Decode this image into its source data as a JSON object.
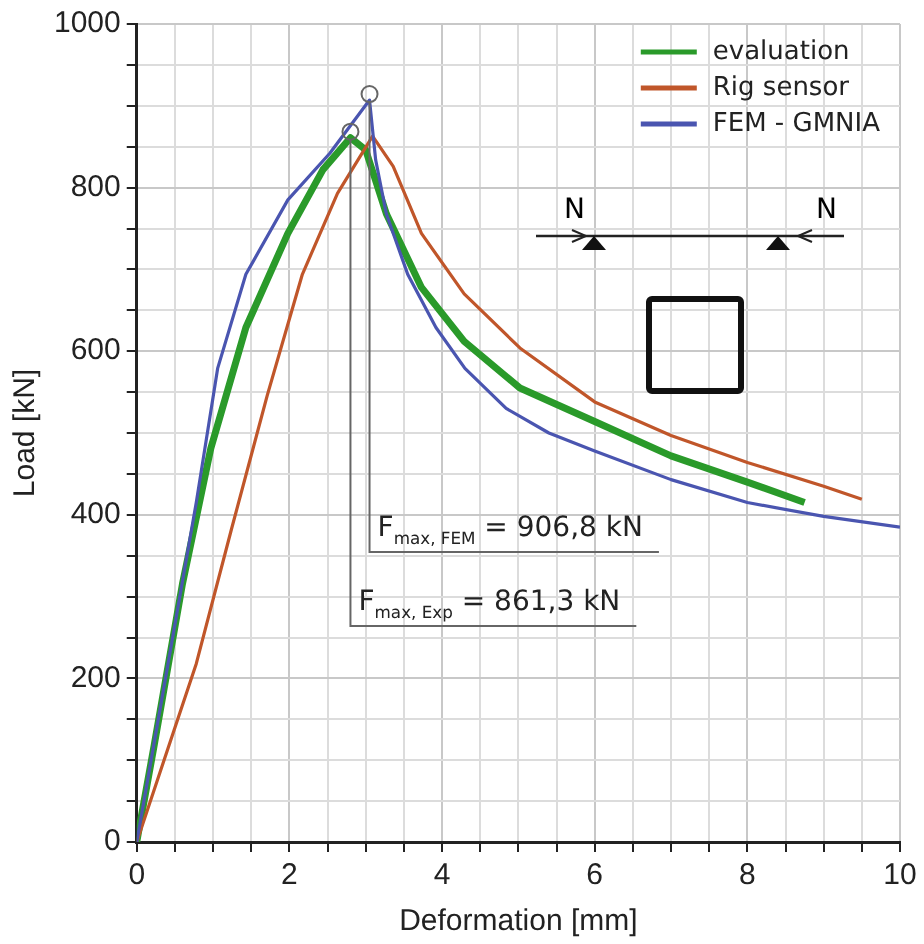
{
  "chart_data": {
    "type": "line",
    "xlabel": "Deformation [mm]",
    "ylabel": "Load [kN]",
    "series": [
      {
        "name": "evaluation",
        "color": "#2a9a2a",
        "x": [
          0,
          0.23,
          0.6,
          0.97,
          1.43,
          1.98,
          2.44,
          2.8,
          3.0,
          3.27,
          3.73,
          4.29,
          5.02,
          6,
          7,
          8,
          8.75
        ],
        "values": [
          0,
          119,
          316,
          481,
          629,
          744,
          822,
          861,
          846,
          768,
          678,
          612,
          555,
          514,
          472,
          440,
          415
        ]
      },
      {
        "name": "Rig sensor",
        "color": "#c0562a",
        "x": [
          0,
          0.78,
          1.24,
          1.71,
          2.17,
          2.63,
          3.09,
          3.36,
          3.73,
          4.29,
          5.02,
          6,
          7,
          8,
          9,
          9.5
        ],
        "values": [
          0,
          218,
          382,
          546,
          694,
          793,
          863,
          826,
          744,
          670,
          604,
          538,
          497,
          464,
          435,
          419
        ]
      },
      {
        "name": "FEM - GMNIA",
        "color": "#4a55b0",
        "x": [
          0,
          0.41,
          0.78,
          1.06,
          1.43,
          1.98,
          2.53,
          3.05,
          3.13,
          3.27,
          3.55,
          3.92,
          4.3,
          4.84,
          5.4,
          6,
          7,
          8,
          9,
          10
        ],
        "values": [
          0,
          218,
          415,
          579,
          694,
          785,
          842,
          907,
          834,
          768,
          694,
          629,
          579,
          530,
          500,
          478,
          443,
          415,
          398,
          385
        ]
      }
    ],
    "xlim": [
      0,
      10
    ],
    "ylim": [
      0,
      1000
    ],
    "xticks": [
      0,
      {
        "value": 0.5,
        "label": null
      },
      2,
      {
        "value": 1,
        "label": null
      },
      {
        "value": 1.5,
        "label": null
      },
      {
        "value": 2.5,
        "label": null
      },
      {
        "value": 3,
        "label": null
      },
      {
        "value": 3.5,
        "label": null
      },
      4,
      {
        "value": 4.5,
        "label": null
      },
      {
        "value": 5,
        "label": null
      },
      {
        "value": 5.5,
        "label": null
      },
      6,
      {
        "value": 6.5,
        "label": null
      },
      {
        "value": 7,
        "label": null
      },
      {
        "value": 7.5,
        "label": null
      },
      8,
      {
        "value": 8.5,
        "label": null
      },
      {
        "value": 9,
        "label": null
      },
      {
        "value": 9.5,
        "label": null
      },
      10
    ],
    "yticks": [
      0,
      {
        "value": 50,
        "label": null
      },
      {
        "value": 100,
        "label": null
      },
      {
        "value": 150,
        "label": null
      },
      200,
      {
        "value": 250,
        "label": null
      },
      {
        "value": 300,
        "label": null
      },
      {
        "value": 350,
        "label": null
      },
      400,
      {
        "value": 450,
        "label": null
      },
      {
        "value": 500,
        "label": null
      },
      {
        "value": 550,
        "label": null
      },
      600,
      {
        "value": 650,
        "label": null
      },
      {
        "value": 700,
        "label": null
      },
      {
        "value": 750,
        "label": null
      },
      800,
      {
        "value": 850,
        "label": null
      },
      {
        "value": 900,
        "label": null
      },
      {
        "value": 950,
        "label": null
      },
      1000
    ],
    "grid": true,
    "legend": "top right",
    "marker": "none",
    "line_style": "solid",
    "annotations": [
      {
        "text": "F$_{max, FEM}$ = 906,8 kN",
        "x": 3.05,
        "y": 907
      },
      {
        "text": "F$_{max, Exp}$ = 861,3 kN",
        "x": 2.8,
        "y": 861
      },
      "N",
      "N"
    ]
  }
}
